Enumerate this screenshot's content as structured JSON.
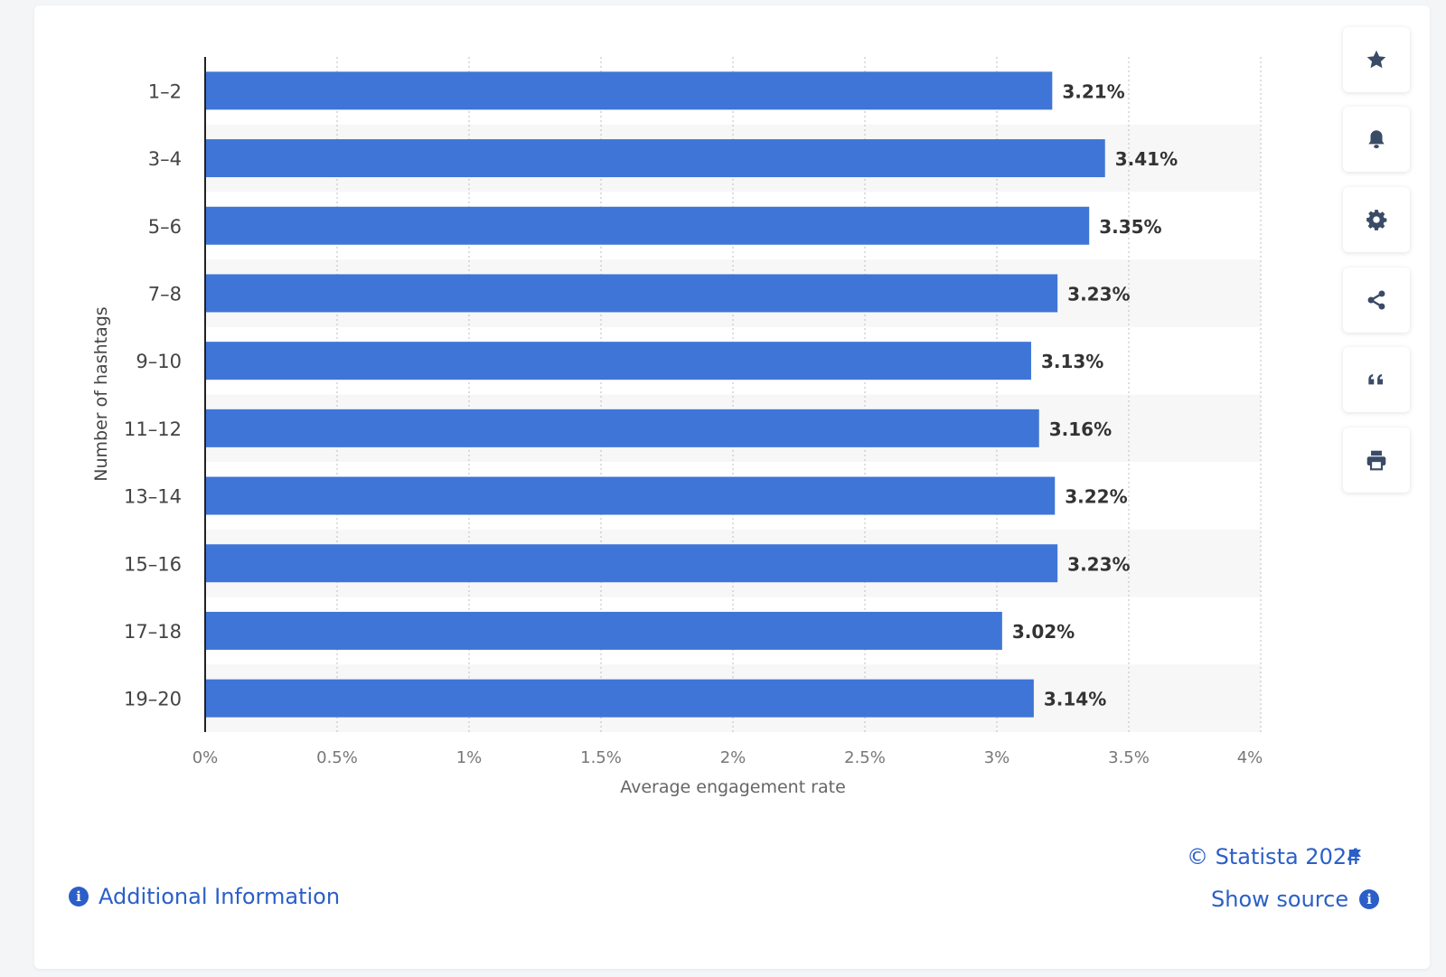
{
  "chart_data": {
    "type": "bar",
    "orientation": "horizontal",
    "categories": [
      "1-2",
      "3-4",
      "5-6",
      "7-8",
      "9-10",
      "11-12",
      "13-14",
      "15-16",
      "17-18",
      "19-20"
    ],
    "values": [
      3.21,
      3.41,
      3.35,
      3.23,
      3.13,
      3.16,
      3.22,
      3.23,
      3.02,
      3.14
    ],
    "value_labels": [
      "3.21%",
      "3.41%",
      "3.35%",
      "3.23%",
      "3.13%",
      "3.16%",
      "3.22%",
      "3.23%",
      "3.02%",
      "3.14%"
    ],
    "xticks": [
      0,
      0.5,
      1,
      1.5,
      2,
      2.5,
      3,
      3.5,
      4
    ],
    "xtick_labels": [
      "0%",
      "0.5%",
      "1%",
      "1.5%",
      "2%",
      "2.5%",
      "3%",
      "3.5%",
      "4%"
    ],
    "xlim": [
      0,
      4
    ],
    "xlabel": "Average engagement rate",
    "ylabel": "Number of hashtags",
    "grid": "vertical dotted",
    "bar_color": "#3f75d6"
  },
  "toolbar": {
    "buttons": [
      {
        "icon": "star-icon"
      },
      {
        "icon": "bell-icon"
      },
      {
        "icon": "gear-icon"
      },
      {
        "icon": "share-icon"
      },
      {
        "icon": "quote-icon"
      },
      {
        "icon": "printer-icon"
      }
    ]
  },
  "footer": {
    "copyright": "© Statista 2024",
    "show_source": "Show source",
    "additional_info": "Additional Information"
  },
  "colors": {
    "accent": "#2b5fc7",
    "bar": "#3f75d6",
    "band": "#f7f7f7",
    "icon": "#3a4b66"
  }
}
